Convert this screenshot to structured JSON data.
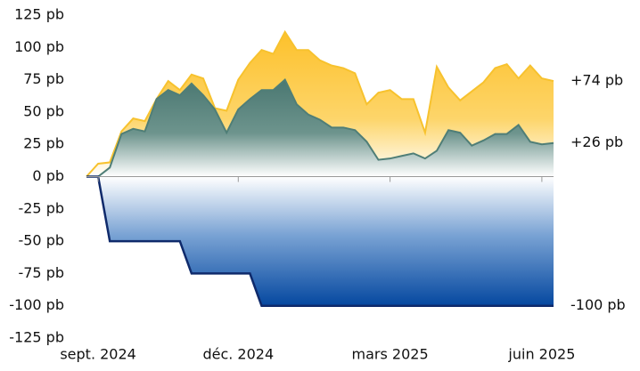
{
  "chart_data": {
    "type": "area",
    "x": [
      0,
      1,
      2,
      3,
      4,
      5,
      6,
      7,
      8,
      9,
      10,
      11,
      12,
      13,
      14,
      15,
      16,
      17,
      18,
      19,
      20,
      21,
      22,
      23,
      24,
      25,
      26,
      27,
      28,
      29,
      30,
      31,
      32,
      33,
      34,
      35,
      36,
      37,
      38,
      39,
      40
    ],
    "xlim": [
      0,
      40
    ],
    "xticks": [
      {
        "value": 1,
        "label": "sept. 2024"
      },
      {
        "value": 13,
        "label": "déc. 2024"
      },
      {
        "value": 26,
        "label": "mars 2025"
      },
      {
        "value": 39,
        "label": "juin 2025"
      }
    ],
    "ylim": [
      -125,
      125
    ],
    "yticks": [
      {
        "value": 125,
        "label": "125 pb"
      },
      {
        "value": 100,
        "label": "100 pb"
      },
      {
        "value": 75,
        "label": "75 pb"
      },
      {
        "value": 50,
        "label": "50 pb"
      },
      {
        "value": 25,
        "label": "25 pb"
      },
      {
        "value": 0,
        "label": "0 pb"
      },
      {
        "value": -25,
        "label": "-25 pb"
      },
      {
        "value": -50,
        "label": "-50 pb"
      },
      {
        "value": -75,
        "label": "-75 pb"
      },
      {
        "value": -100,
        "label": "-100 pb"
      },
      {
        "value": -125,
        "label": "-125 pb"
      }
    ],
    "series": [
      {
        "color": "#f7c22e",
        "values": [
          0,
          10,
          11,
          35,
          45,
          43,
          60,
          74,
          67,
          79,
          76,
          53,
          51,
          75,
          88,
          98,
          95,
          112,
          98,
          98,
          90,
          86,
          84,
          80,
          56,
          65,
          67,
          60,
          60,
          34,
          85,
          69,
          59,
          66,
          73,
          84,
          87,
          76,
          86,
          76,
          74
        ],
        "value_labels": [
          null,
          null,
          null,
          null,
          null,
          null,
          null,
          null,
          null,
          null,
          null,
          null,
          null,
          null,
          null,
          null,
          null,
          null,
          null,
          null,
          null,
          null,
          null,
          null,
          null,
          null,
          null,
          null,
          null,
          null,
          null,
          null,
          null,
          null,
          null,
          null,
          null,
          null,
          null,
          null,
          "+74 pb"
        ]
      },
      {
        "color": "#4f7e77",
        "values": [
          0,
          0,
          7,
          33,
          37,
          35,
          60,
          67,
          63,
          72,
          63,
          52,
          34,
          52,
          60,
          67,
          67,
          75,
          56,
          48,
          44,
          38,
          38,
          36,
          27,
          13,
          14,
          16,
          18,
          14,
          20,
          36,
          34,
          24,
          28,
          33,
          33,
          40,
          27,
          25,
          26
        ],
        "value_labels": [
          null,
          null,
          null,
          null,
          null,
          null,
          null,
          null,
          null,
          null,
          null,
          null,
          null,
          null,
          null,
          null,
          null,
          null,
          null,
          null,
          null,
          null,
          null,
          null,
          null,
          null,
          null,
          null,
          null,
          null,
          null,
          null,
          null,
          null,
          null,
          null,
          null,
          null,
          null,
          null,
          "+26 pb"
        ]
      },
      {
        "color": "#0f2a6b",
        "values": [
          0,
          0,
          -50,
          -50,
          -50,
          -50,
          -50,
          -50,
          -50,
          -75,
          -75,
          -75,
          -75,
          -75,
          -75,
          -100,
          -100,
          -100,
          -100,
          -100,
          -100,
          -100,
          -100,
          -100,
          -100,
          -100,
          -100,
          -100,
          -100,
          -100,
          -100,
          -100,
          -100,
          -100,
          -100,
          -100,
          -100,
          -100,
          -100,
          -100,
          -100
        ],
        "value_labels": [
          null,
          null,
          null,
          null,
          null,
          null,
          null,
          null,
          null,
          null,
          null,
          null,
          null,
          null,
          null,
          null,
          null,
          null,
          null,
          null,
          null,
          null,
          null,
          null,
          null,
          null,
          null,
          null,
          null,
          null,
          null,
          null,
          null,
          null,
          null,
          null,
          null,
          null,
          null,
          null,
          "-100 pb"
        ]
      }
    ]
  }
}
